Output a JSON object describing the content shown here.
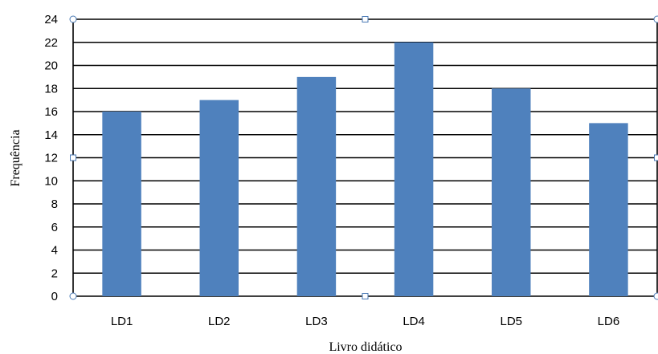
{
  "chart_data": {
    "type": "bar",
    "categories": [
      "LD1",
      "LD2",
      "LD3",
      "LD4",
      "LD5",
      "LD6"
    ],
    "values": [
      16,
      17,
      19,
      22,
      18,
      15
    ],
    "title": "",
    "xlabel": "Livro didático",
    "ylabel": "Frequência",
    "ylim": [
      0,
      24
    ],
    "yticks": [
      0,
      2,
      4,
      6,
      8,
      10,
      12,
      14,
      16,
      18,
      20,
      22,
      24
    ],
    "grid": true,
    "legend": "none",
    "bar_color": "#4f81bd"
  }
}
